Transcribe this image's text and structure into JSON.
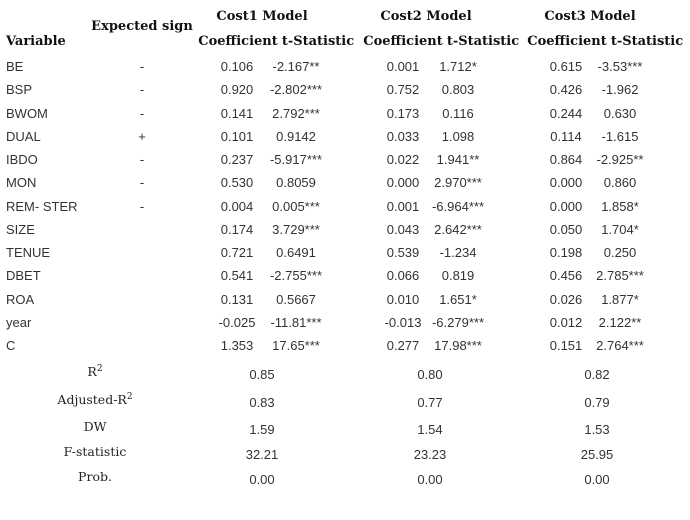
{
  "headers": {
    "variable": "Variable",
    "expected_sign": "Expected sign",
    "models": [
      "Cost1 Model",
      "Cost2 Model",
      "Cost3 Model"
    ],
    "coefficient": "Coefficient",
    "t_statistic": "t-Statistic"
  },
  "rows": [
    {
      "variable": "BE",
      "sign": "-",
      "values": [
        "0.106",
        "-2.167**",
        "0.001",
        "1.712*",
        "0.615",
        "-3.53***"
      ]
    },
    {
      "variable": "BSP",
      "sign": "-",
      "values": [
        "0.920",
        "-2.802***",
        "0.752",
        "0.803",
        "0.426",
        "-1.962"
      ]
    },
    {
      "variable": "BWOM",
      "sign": "-",
      "values": [
        "0.141",
        "2.792***",
        "0.173",
        "0.116",
        "0.244",
        "0.630"
      ]
    },
    {
      "variable": "DUAL",
      "sign": "+",
      "values": [
        "0.101",
        "0.9142",
        "0.033",
        "1.098",
        "0.114",
        "-1.615"
      ]
    },
    {
      "variable": "IBDO",
      "sign": "-",
      "values": [
        "0.237",
        "-5.917***",
        "0.022",
        "1.941**",
        "0.864",
        "-2.925**"
      ]
    },
    {
      "variable": "MON",
      "sign": "-",
      "values": [
        "0.530",
        "0.8059",
        "0.000",
        "2.970***",
        "0.000",
        "0.860"
      ]
    },
    {
      "variable": "REM- STER",
      "sign": "-",
      "values": [
        "0.004",
        "0.005***",
        "0.001",
        "-6.964***",
        "0.000",
        "1.858*"
      ]
    },
    {
      "variable": "SIZE",
      "sign": "",
      "values": [
        "0.174",
        "3.729***",
        "0.043",
        "2.642***",
        "0.050",
        "1.704*"
      ]
    },
    {
      "variable": "TENUE",
      "sign": "",
      "values": [
        "0.721",
        "0.6491",
        "0.539",
        "-1.234",
        "0.198",
        "0.250"
      ]
    },
    {
      "variable": "DBET",
      "sign": "",
      "values": [
        "0.541",
        "-2.755***",
        "0.066",
        "0.819",
        "0.456",
        "2.785***"
      ]
    },
    {
      "variable": "ROA",
      "sign": "",
      "values": [
        "0.131",
        "0.5667",
        "0.010",
        "1.651*",
        "0.026",
        "1.877*"
      ]
    },
    {
      "variable": "year",
      "sign": "",
      "values": [
        "-0.025",
        "-11.81***",
        "-0.013",
        "-6.279***",
        "0.012",
        "2.122**"
      ]
    },
    {
      "variable": "C",
      "sign": "",
      "values": [
        "1.353",
        "17.65***",
        "0.277",
        "17.98***",
        "0.151",
        "2.764***"
      ]
    }
  ],
  "summary": [
    {
      "label": "R",
      "sup": "2",
      "values": [
        "0.85",
        "0.80",
        "0.82"
      ]
    },
    {
      "label": "Adjusted-R",
      "sup": "2",
      "values": [
        "0.83",
        "0.77",
        "0.79"
      ]
    },
    {
      "label": "DW",
      "sup": "",
      "values": [
        "1.59",
        "1.54",
        "1.53"
      ]
    },
    {
      "label": "F-statistic",
      "sup": "",
      "values": [
        "32.21",
        "23.23",
        "25.95"
      ]
    },
    {
      "label": "Prob.",
      "sup": "",
      "values": [
        "0.00",
        "0.00",
        "0.00"
      ]
    }
  ]
}
